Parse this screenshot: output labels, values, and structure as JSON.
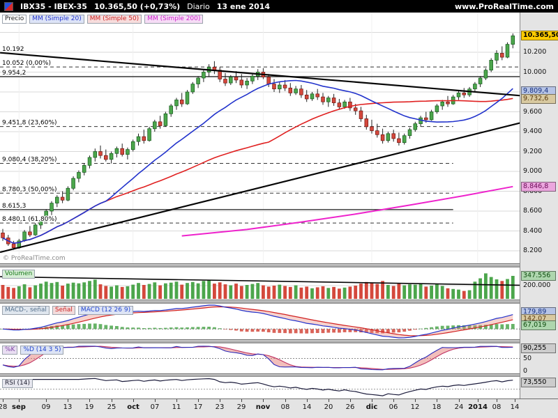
{
  "topbar": {
    "symbol": "IBX35 - IBEX-35",
    "price": "10.365,50 (+0,73%)",
    "timeframe": "Diario",
    "date": "13 ene 2014",
    "site": "www.ProRealTime.com"
  },
  "colors": {
    "up": "#4ca64c",
    "down": "#d4483c",
    "mm20": "#2233cc",
    "mm50": "#e02020",
    "mm200": "#ee22cc",
    "grid": "#d8d8d8",
    "trend": "#050505",
    "last_tag_bg": "#ffcc00"
  },
  "price_panel": {
    "watermark": "© ProRealTime.com",
    "badges": [
      {
        "label": "Precio",
        "color": "#222222",
        "bg": "#ffffff"
      },
      {
        "label": "MM (Simple 20)",
        "color": "#2233cc",
        "bg": "#dde4f7"
      },
      {
        "label": "MM (Simple 50)",
        "color": "#cc2222",
        "bg": "#f7dddd"
      },
      {
        "label": "MM (Simple 200)",
        "color": "#cc22cc",
        "bg": "#f6ddf6"
      }
    ],
    "y_ticks": [
      {
        "label": "10.200",
        "price": 10200
      },
      {
        "label": "10.000",
        "price": 10000
      },
      {
        "label": "9.800",
        "price": 9800
      },
      {
        "label": "9.600",
        "price": 9600
      },
      {
        "label": "9.400",
        "price": 9400
      },
      {
        "label": "9.200",
        "price": 9200
      },
      {
        "label": "9.000",
        "price": 9000
      },
      {
        "label": "8.800",
        "price": 8800
      },
      {
        "label": "8.600",
        "price": 8600
      },
      {
        "label": "8.400",
        "price": 8400
      },
      {
        "label": "8.200",
        "price": 8200
      }
    ],
    "tags": [
      {
        "label": "10.365,50",
        "price": 10365.5,
        "bg": "#ffcc00",
        "fg": "#000000",
        "bold": true
      },
      {
        "label": "9.809,4",
        "price": 9809.4,
        "bg": "#b6c4e6",
        "fg": "#16307e"
      },
      {
        "label": "9.732,6",
        "price": 9732.6,
        "bg": "#d8c9a0",
        "fg": "#5a3a10"
      },
      {
        "label": "8.846,8",
        "price": 8846.8,
        "bg": "#eba6de",
        "fg": "#6d0a58"
      }
    ],
    "levels": [
      {
        "label": "10.192",
        "price": 10192,
        "style": "none"
      },
      {
        "label": "10.052 (0,00%)",
        "price": 10052,
        "style": "dashed",
        "full": true
      },
      {
        "label": "9.954,2",
        "price": 9954.2,
        "style": "solid",
        "full": true
      },
      {
        "label": "9.451,8 (23,60%)",
        "price": 9451.8,
        "style": "dashed"
      },
      {
        "label": "9.080,4 (38,20%)",
        "price": 9080.4,
        "style": "dashed"
      },
      {
        "label": "8.780,3 (50,00%)",
        "price": 8780.3,
        "style": "dashed"
      },
      {
        "label": "8.615,3",
        "price": 8615.3,
        "style": "solid"
      },
      {
        "label": "8.480,1 (61,80%)",
        "price": 8480.1,
        "style": "dashed"
      }
    ],
    "trendlines": [
      {
        "i1": -0.5,
        "p1": 10195,
        "i2": 95.6,
        "p2": 9762
      },
      {
        "i1": -0.5,
        "p1": 8185,
        "i2": 95.6,
        "p2": 9492
      }
    ]
  },
  "volume_panel": {
    "badges": [
      {
        "label": "Volumen",
        "color": "#1a7a1a",
        "bg": "#d6edd6"
      }
    ],
    "ticks": [
      {
        "label": "200.000",
        "value": 200000
      }
    ],
    "tag": {
      "label": "347.556",
      "value": 347556,
      "bg": "#aed6ae",
      "fg": "#0f4d0f"
    }
  },
  "macd_panel": {
    "badges": [
      {
        "label": "MACD-, señal",
        "color": "#55708c",
        "bg": "#dfe6ee"
      },
      {
        "label": "Señal",
        "color": "#cc2222",
        "bg": "#f3dcdc"
      },
      {
        "label": "MACD (12 26 9)",
        "color": "#2244cc",
        "bg": "#dde4f5"
      }
    ],
    "tags": [
      {
        "label": "179,89",
        "bg": "#b6c4e6",
        "fg": "#16307e"
      },
      {
        "label": "142,07",
        "bg": "#d8c9a0",
        "fg": "#5a3a10"
      },
      {
        "label": "67,019",
        "bg": "#aed6ae",
        "fg": "#0f4d0f"
      }
    ]
  },
  "stoch_panel": {
    "badges": [
      {
        "label": "%K",
        "color": "#7a3fa0",
        "bg": "#e9def2"
      },
      {
        "label": "%D (14 3 5)",
        "color": "#2244cc",
        "bg": "#dde4f5"
      }
    ],
    "ticks": [
      {
        "label": "50",
        "value": 50
      },
      {
        "label": "0",
        "value": 0
      }
    ],
    "tag": {
      "label": "90,255",
      "value": 90.255,
      "bg": "#cccccc",
      "fg": "#000000"
    }
  },
  "rsi_panel": {
    "badges": [
      {
        "label": "RSI (14)",
        "color": "#223",
        "bg": "#e6e6ee"
      }
    ],
    "tag": {
      "label": "73,550",
      "value": 73.55,
      "bg": "#cccccc",
      "fg": "#000000"
    }
  },
  "chart_data": {
    "type": "candlestick+indicators",
    "title": "IBX35 - IBEX-35 Diario",
    "price_axis": {
      "min": 8074,
      "max": 10600,
      "grid_step": 200
    },
    "x_labels": [
      {
        "label": "28",
        "idx": 0
      },
      {
        "label": "sep",
        "idx": 3,
        "bold": true
      },
      {
        "label": "09",
        "idx": 8
      },
      {
        "label": "13",
        "idx": 12
      },
      {
        "label": "19",
        "idx": 16
      },
      {
        "label": "25",
        "idx": 20
      },
      {
        "label": "oct",
        "idx": 24,
        "bold": true
      },
      {
        "label": "07",
        "idx": 28
      },
      {
        "label": "11",
        "idx": 32
      },
      {
        "label": "17",
        "idx": 36
      },
      {
        "label": "23",
        "idx": 40
      },
      {
        "label": "29",
        "idx": 44
      },
      {
        "label": "nov",
        "idx": 48,
        "bold": true
      },
      {
        "label": "08",
        "idx": 52
      },
      {
        "label": "14",
        "idx": 56
      },
      {
        "label": "20",
        "idx": 60
      },
      {
        "label": "26",
        "idx": 64
      },
      {
        "label": "dic",
        "idx": 68,
        "bold": true
      },
      {
        "label": "06",
        "idx": 72
      },
      {
        "label": "12",
        "idx": 76
      },
      {
        "label": "18",
        "idx": 80
      },
      {
        "label": "24",
        "idx": 84
      },
      {
        "label": "2014",
        "idx": 87.5,
        "bold": true
      },
      {
        "label": "08",
        "idx": 91
      },
      {
        "label": "14",
        "idx": 94.3
      }
    ],
    "candles": [
      [
        8380,
        8420,
        8300,
        8330
      ],
      [
        8330,
        8360,
        8250,
        8270
      ],
      [
        8270,
        8300,
        8210,
        8230
      ],
      [
        8230,
        8320,
        8220,
        8300
      ],
      [
        8300,
        8410,
        8290,
        8390
      ],
      [
        8390,
        8450,
        8340,
        8360
      ],
      [
        8360,
        8480,
        8350,
        8460
      ],
      [
        8460,
        8520,
        8420,
        8500
      ],
      [
        8500,
        8620,
        8490,
        8600
      ],
      [
        8600,
        8700,
        8560,
        8680
      ],
      [
        8680,
        8760,
        8640,
        8740
      ],
      [
        8740,
        8800,
        8680,
        8710
      ],
      [
        8710,
        8850,
        8700,
        8830
      ],
      [
        8830,
        8950,
        8810,
        8930
      ],
      [
        8930,
        9010,
        8890,
        8990
      ],
      [
        8990,
        9080,
        8960,
        9060
      ],
      [
        9060,
        9160,
        9030,
        9140
      ],
      [
        9140,
        9230,
        9100,
        9200
      ],
      [
        9200,
        9260,
        9130,
        9160
      ],
      [
        9160,
        9220,
        9100,
        9120
      ],
      [
        9120,
        9200,
        9080,
        9180
      ],
      [
        9180,
        9250,
        9140,
        9230
      ],
      [
        9230,
        9280,
        9150,
        9170
      ],
      [
        9170,
        9240,
        9120,
        9220
      ],
      [
        9220,
        9320,
        9200,
        9300
      ],
      [
        9300,
        9380,
        9260,
        9350
      ],
      [
        9350,
        9420,
        9280,
        9310
      ],
      [
        9310,
        9450,
        9300,
        9430
      ],
      [
        9430,
        9520,
        9400,
        9500
      ],
      [
        9500,
        9560,
        9430,
        9460
      ],
      [
        9460,
        9600,
        9450,
        9580
      ],
      [
        9580,
        9680,
        9550,
        9660
      ],
      [
        9660,
        9740,
        9620,
        9720
      ],
      [
        9720,
        9790,
        9650,
        9680
      ],
      [
        9680,
        9820,
        9670,
        9800
      ],
      [
        9800,
        9900,
        9780,
        9880
      ],
      [
        9880,
        9960,
        9840,
        9940
      ],
      [
        9940,
        10020,
        9900,
        10000
      ],
      [
        10000,
        10080,
        9950,
        10050
      ],
      [
        10050,
        10110,
        9980,
        10020
      ],
      [
        10020,
        10050,
        9900,
        9930
      ],
      [
        9930,
        9990,
        9860,
        9890
      ],
      [
        9890,
        9970,
        9870,
        9950
      ],
      [
        9950,
        10010,
        9890,
        9920
      ],
      [
        9920,
        9980,
        9840,
        9870
      ],
      [
        9870,
        9940,
        9830,
        9910
      ],
      [
        9910,
        9990,
        9880,
        9960
      ],
      [
        9960,
        10030,
        9920,
        10000
      ],
      [
        10000,
        10040,
        9930,
        9950
      ],
      [
        9950,
        9980,
        9850,
        9880
      ],
      [
        9880,
        9930,
        9800,
        9830
      ],
      [
        9830,
        9900,
        9790,
        9870
      ],
      [
        9870,
        9920,
        9810,
        9840
      ],
      [
        9840,
        9890,
        9760,
        9790
      ],
      [
        9790,
        9860,
        9770,
        9830
      ],
      [
        9830,
        9870,
        9740,
        9770
      ],
      [
        9770,
        9820,
        9700,
        9730
      ],
      [
        9730,
        9800,
        9710,
        9780
      ],
      [
        9780,
        9830,
        9720,
        9750
      ],
      [
        9750,
        9790,
        9670,
        9700
      ],
      [
        9700,
        9760,
        9650,
        9740
      ],
      [
        9740,
        9780,
        9660,
        9690
      ],
      [
        9690,
        9730,
        9620,
        9650
      ],
      [
        9650,
        9720,
        9630,
        9700
      ],
      [
        9700,
        9740,
        9610,
        9640
      ],
      [
        9640,
        9680,
        9570,
        9610
      ],
      [
        9610,
        9650,
        9500,
        9530
      ],
      [
        9530,
        9570,
        9420,
        9450
      ],
      [
        9450,
        9520,
        9380,
        9410
      ],
      [
        9410,
        9480,
        9340,
        9370
      ],
      [
        9370,
        9430,
        9280,
        9310
      ],
      [
        9310,
        9400,
        9290,
        9380
      ],
      [
        9380,
        9420,
        9300,
        9330
      ],
      [
        9330,
        9390,
        9260,
        9290
      ],
      [
        9290,
        9380,
        9270,
        9360
      ],
      [
        9360,
        9440,
        9330,
        9420
      ],
      [
        9420,
        9500,
        9400,
        9480
      ],
      [
        9480,
        9560,
        9450,
        9540
      ],
      [
        9540,
        9600,
        9490,
        9520
      ],
      [
        9520,
        9620,
        9510,
        9600
      ],
      [
        9600,
        9680,
        9580,
        9660
      ],
      [
        9660,
        9720,
        9620,
        9700
      ],
      [
        9700,
        9760,
        9650,
        9680
      ],
      [
        9680,
        9770,
        9670,
        9750
      ],
      [
        9750,
        9810,
        9720,
        9790
      ],
      [
        9790,
        9840,
        9740,
        9770
      ],
      [
        9770,
        9850,
        9750,
        9830
      ],
      [
        9830,
        9900,
        9800,
        9880
      ],
      [
        9880,
        9960,
        9850,
        9940
      ],
      [
        9940,
        10040,
        9920,
        10020
      ],
      [
        10020,
        10140,
        10000,
        10120
      ],
      [
        10120,
        10220,
        10080,
        10190
      ],
      [
        10190,
        10260,
        10120,
        10150
      ],
      [
        10150,
        10300,
        10140,
        10280
      ],
      [
        10280,
        10390,
        10240,
        10365.5
      ]
    ],
    "volumes": [
      210000,
      180000,
      165000,
      190000,
      220000,
      175000,
      205000,
      230000,
      260000,
      240000,
      255000,
      200000,
      230000,
      245000,
      235000,
      250000,
      270000,
      290000,
      220000,
      195000,
      185000,
      205000,
      180000,
      190000,
      215000,
      240000,
      210000,
      225000,
      250000,
      205000,
      235000,
      245000,
      260000,
      215000,
      240000,
      255000,
      235000,
      270000,
      285000,
      230000,
      250000,
      220000,
      205000,
      230000,
      195000,
      210000,
      225000,
      240000,
      205000,
      185000,
      200000,
      215000,
      195000,
      180000,
      205000,
      170000,
      185000,
      160000,
      175000,
      190000,
      165000,
      180000,
      155000,
      170000,
      185000,
      200000,
      230000,
      255000,
      240000,
      225000,
      270000,
      210000,
      195000,
      235000,
      205000,
      220000,
      215000,
      230000,
      185000,
      200000,
      220000,
      195000,
      160000,
      150000,
      140000,
      120000,
      130000,
      260000,
      310000,
      385000,
      330000,
      295000,
      270000,
      300000,
      347556
    ],
    "mm200_anchors": [
      [
        33,
        8350
      ],
      [
        45,
        8415
      ],
      [
        55,
        8490
      ],
      [
        65,
        8570
      ],
      [
        75,
        8660
      ],
      [
        85,
        8755
      ],
      [
        94,
        8847
      ]
    ],
    "volume_trendline": {
      "i1": -0.5,
      "v1": 335000,
      "i2": 95.6,
      "v2": 205000
    },
    "indicators": {
      "mm": [
        20,
        50,
        200
      ],
      "macd": [
        12,
        26,
        9
      ],
      "stochastic": [
        14,
        3,
        5
      ],
      "rsi": [
        14
      ]
    }
  }
}
